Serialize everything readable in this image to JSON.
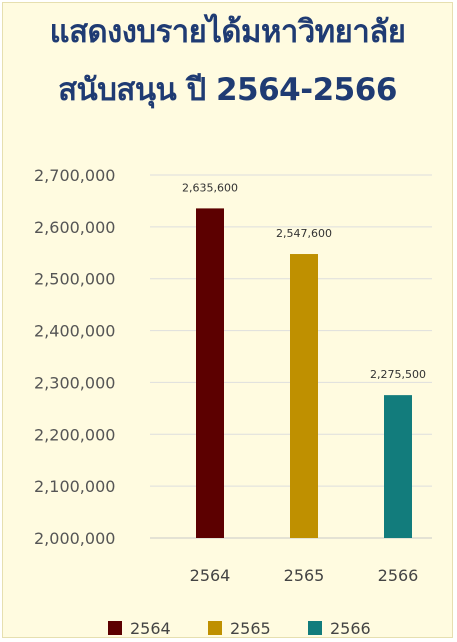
{
  "title_line1": "แสดงงบรายได้มหาวิทยาลัย",
  "title_line2": "สนับสนุน ปี 2564-2566",
  "chart_data": {
    "type": "bar",
    "title": "แสดงงบรายได้มหาวิทยาลัย สนับสนุน ปี 2564-2566",
    "categories": [
      "2564",
      "2565",
      "2566"
    ],
    "values": [
      2635600,
      2547600,
      2275500
    ],
    "data_labels": [
      "2,635,600",
      "2,547,600",
      "2,275,500"
    ],
    "colors": [
      "#5c0000",
      "#bf9000",
      "#127c7c"
    ],
    "ylim": [
      2000000,
      2700000
    ],
    "yticks": [
      2000000,
      2100000,
      2200000,
      2300000,
      2400000,
      2500000,
      2600000,
      2700000
    ],
    "ytick_labels": [
      "2,000,000",
      "2,100,000",
      "2,200,000",
      "2,300,000",
      "2,400,000",
      "2,500,000",
      "2,600,000",
      "2,700,000"
    ],
    "grid": true,
    "legend": {
      "position": "bottom",
      "entries": [
        "2564",
        "2565",
        "2566"
      ]
    }
  }
}
